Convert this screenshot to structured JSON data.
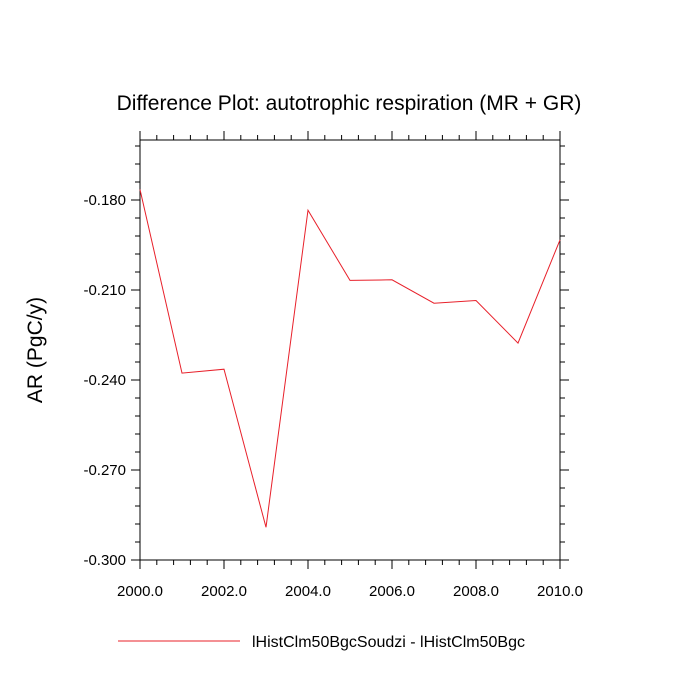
{
  "chart_data": {
    "type": "line",
    "title": "Difference Plot: autotrophic respiration (MR + GR)",
    "xlabel": "",
    "ylabel": "AR  (PgC/y)",
    "xlim": [
      2000,
      2010
    ],
    "ylim": [
      -0.3,
      -0.16
    ],
    "x_ticks": [
      2000,
      2002,
      2004,
      2006,
      2008,
      2010
    ],
    "x_tick_labels": [
      "2000.0",
      "2002.0",
      "2004.0",
      "2006.0",
      "2008.0",
      "2010.0"
    ],
    "y_ticks": [
      -0.18,
      -0.21,
      -0.24,
      -0.27,
      -0.3
    ],
    "y_tick_labels": [
      "-0.180",
      "-0.210",
      "-0.240",
      "-0.270",
      "-0.300"
    ],
    "grid": false,
    "legend_position": "bottom",
    "series": [
      {
        "name": "lHistClm50BgcSoudzi - lHistClm50Bgc",
        "color": "#e8202a",
        "x": [
          2000,
          2001,
          2002,
          2003,
          2004,
          2005,
          2006,
          2007,
          2008,
          2009,
          2010
        ],
        "y": [
          -0.1765,
          -0.2377,
          -0.2364,
          -0.2891,
          -0.1834,
          -0.2068,
          -0.2066,
          -0.2144,
          -0.2135,
          -0.2277,
          -0.1933
        ]
      }
    ]
  }
}
